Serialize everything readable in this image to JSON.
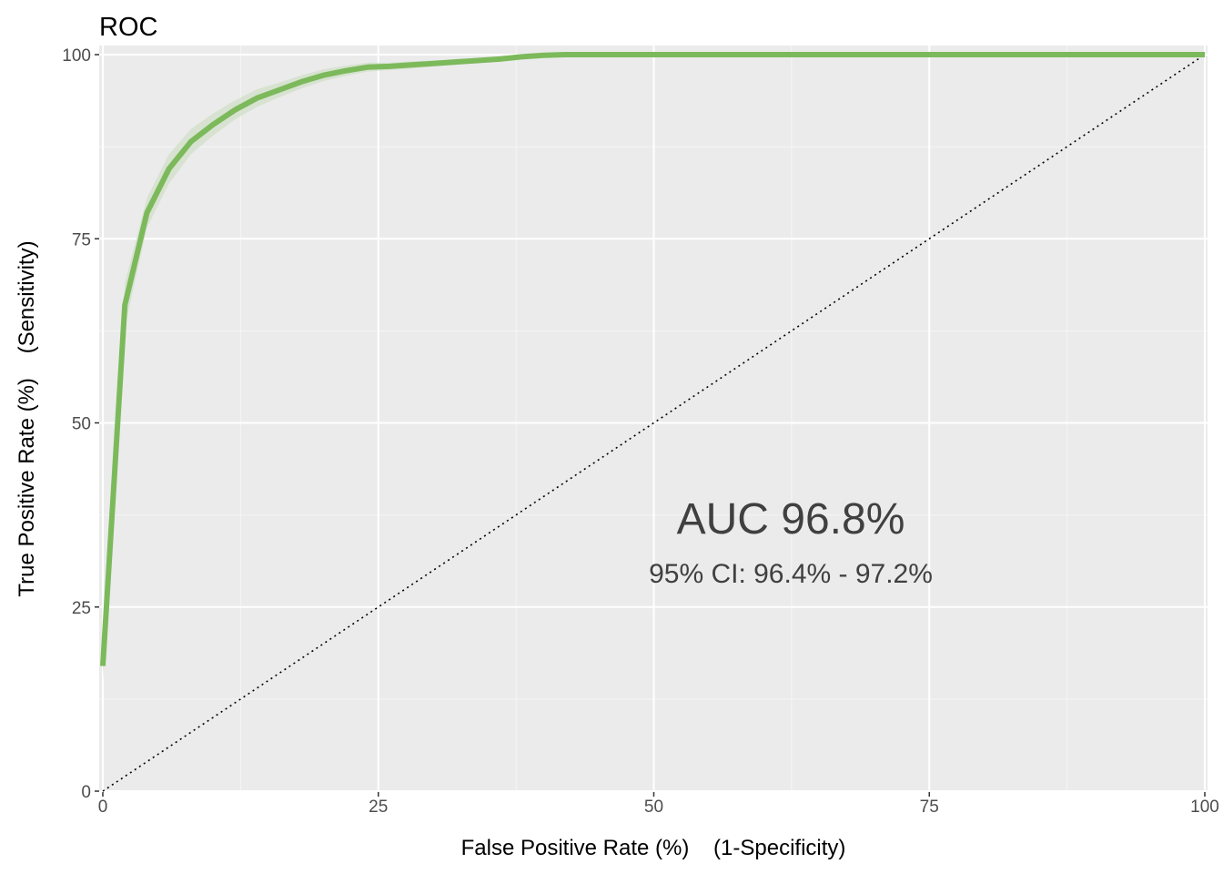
{
  "chart_data": {
    "type": "line",
    "title": "ROC",
    "xlabel": "False Positive Rate (%)    (1-Specificity)",
    "ylabel": "True Positive Rate (%)    (Sensitivity)",
    "xlim": [
      0,
      100
    ],
    "ylim": [
      0,
      100
    ],
    "x_ticks": [
      0,
      25,
      50,
      75,
      100
    ],
    "y_ticks": [
      0,
      25,
      50,
      75,
      100
    ],
    "grid": true,
    "series": [
      {
        "color": "#7cb95b",
        "band_color": "#c9dcc0",
        "x": [
          0,
          2,
          4,
          6,
          8,
          10,
          12,
          14,
          16,
          18,
          20,
          22,
          24,
          26,
          28,
          30,
          32,
          34,
          36,
          38,
          40,
          42,
          44,
          46,
          48,
          50,
          100
        ],
        "y": [
          17,
          66,
          78.5,
          84.5,
          88.2,
          90.5,
          92.5,
          94.1,
          95.2,
          96.3,
          97.2,
          97.8,
          98.3,
          98.4,
          98.6,
          98.8,
          99.0,
          99.2,
          99.4,
          99.7,
          99.9,
          100,
          100,
          100,
          100,
          100,
          100
        ],
        "y_lower": [
          15,
          63,
          76.5,
          82.5,
          86.5,
          89.0,
          91.2,
          92.9,
          94.2,
          95.4,
          96.4,
          97.1,
          97.7,
          97.9,
          98.1,
          98.4,
          98.6,
          98.9,
          99.1,
          99.4,
          99.6,
          99.8,
          99.9,
          100,
          100,
          100,
          100
        ],
        "y_upper": [
          19,
          69,
          80.5,
          86.5,
          89.9,
          92.0,
          93.8,
          95.3,
          96.2,
          97.2,
          98.0,
          98.5,
          98.9,
          98.9,
          99.1,
          99.2,
          99.4,
          99.5,
          99.7,
          99.9,
          100,
          100,
          100,
          100,
          100,
          100,
          100
        ]
      }
    ],
    "reference_line": {
      "x": [
        0,
        100
      ],
      "y": [
        0,
        100
      ],
      "style": "dotted",
      "color": "#000000"
    },
    "annotation": {
      "auc": "AUC 96.8%",
      "ci": "95% CI: 96.4% - 97.2%"
    },
    "colors": {
      "panel_background": "#ebebeb",
      "grid_major": "#ffffff",
      "grid_minor": "#f5f5f5"
    }
  }
}
